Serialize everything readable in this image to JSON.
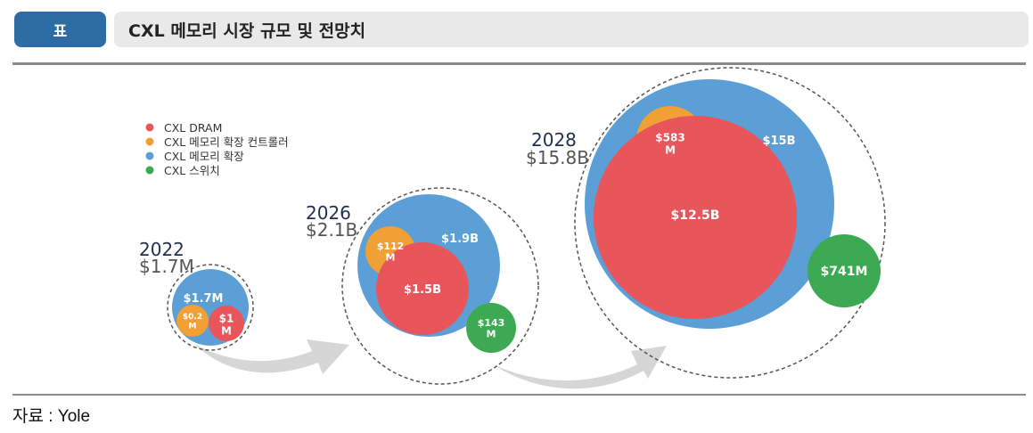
{
  "header": {
    "badge": "표",
    "title": "CXL 메모리 시장 규모 및 전망치"
  },
  "source": "자료 : Yole",
  "colors": {
    "dram": "#e8555a",
    "controller": "#f0a035",
    "expansion": "#5b9fd6",
    "switch": "#3daa53",
    "badge": "#2e6da4"
  },
  "chart_data": {
    "type": "bubble",
    "title": "CXL 메모리 시장 규모 및 전망치",
    "legend": [
      "CXL DRAM",
      "CXL 메모리 확장 컨트롤러",
      "CXL 메모리 확장",
      "CXL 스위치"
    ],
    "groups": [
      {
        "year": "2022",
        "total": "$1.7M",
        "values": {
          "expansion": "$1.7M",
          "controller": "$0.2 M",
          "dram": "$1 M"
        }
      },
      {
        "year": "2026",
        "total": "$2.1B",
        "values": {
          "expansion": "$1.9B",
          "controller": "$112 M",
          "dram": "$1.5B",
          "switch": "$143 M"
        }
      },
      {
        "year": "2028",
        "total": "$15.8B",
        "values": {
          "expansion": "$15B",
          "controller": "$583 M",
          "dram": "$12.5B",
          "switch": "$741M"
        }
      }
    ]
  }
}
